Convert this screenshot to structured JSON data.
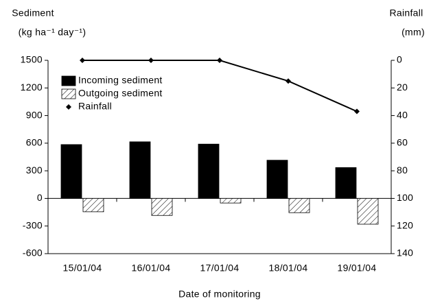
{
  "chart_data": {
    "type": "bar",
    "y_label": "Sediment",
    "y_unit": "(kg ha⁻¹ day⁻¹)",
    "y2_label": "Rainfall",
    "y2_unit": "(mm)",
    "x_label": "Date of monitoring",
    "categories": [
      "15/01/04",
      "16/01/04",
      "17/01/04",
      "18/01/04",
      "19/01/04"
    ],
    "series": [
      {
        "name": "Incoming sediment",
        "color": "#000000",
        "values": [
          585,
          615,
          590,
          415,
          335
        ]
      },
      {
        "name": "Outgoing sediment",
        "color": "#ffffff",
        "pattern": "hatch",
        "values": [
          -145,
          -185,
          -50,
          -155,
          -280
        ]
      },
      {
        "name": "Rainfall",
        "type": "line",
        "color": "#000000",
        "axis": "y2",
        "values": [
          0,
          0,
          0,
          15,
          37
        ]
      }
    ],
    "ylim": [
      -600,
      1500
    ],
    "yticks": [
      -600,
      -300,
      0,
      300,
      600,
      900,
      1200,
      1500
    ],
    "y2lim": [
      140,
      0
    ],
    "y2ticks": [
      0,
      20,
      40,
      60,
      80,
      100,
      120,
      140
    ],
    "legend": "upper left"
  }
}
